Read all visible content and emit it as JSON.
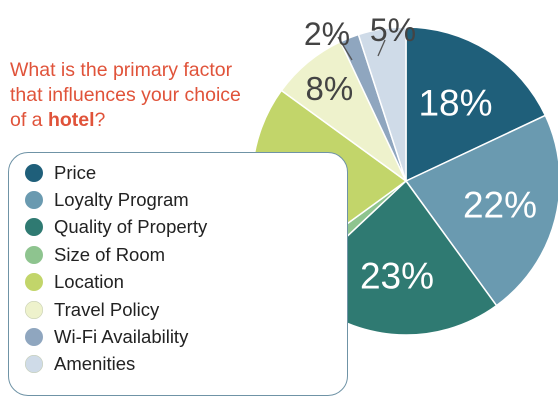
{
  "question": {
    "prefix": "What is the primary factor that influences your choice of a ",
    "emphasis": "hotel",
    "suffix": "?"
  },
  "chart_data": {
    "type": "pie",
    "title": "What is the primary factor that influences your choice of a hotel?",
    "slices": [
      {
        "label": "Price",
        "value": 18,
        "display": "18%",
        "color": "#1f5f7a"
      },
      {
        "label": "Loyalty Program",
        "value": 22,
        "display": "22%",
        "color": "#6a9ab0"
      },
      {
        "label": "Quality of Property",
        "value": 23,
        "display": "23%",
        "color": "#2f7a72"
      },
      {
        "label": "Size of Room",
        "value": 2,
        "display": "2%",
        "color": "#8ec48f"
      },
      {
        "label": "Location",
        "value": 20,
        "display": "20%",
        "color": "#c2d56a"
      },
      {
        "label": "Travel Policy",
        "value": 8,
        "display": "8%",
        "color": "#eef2cc"
      },
      {
        "label": "Wi-Fi Availability",
        "value": 2,
        "display": "2%",
        "color": "#8fa6bf"
      },
      {
        "label": "Amenities",
        "value": 5,
        "display": "5%",
        "color": "#cfdbe8"
      }
    ],
    "legend_placement": "left"
  }
}
